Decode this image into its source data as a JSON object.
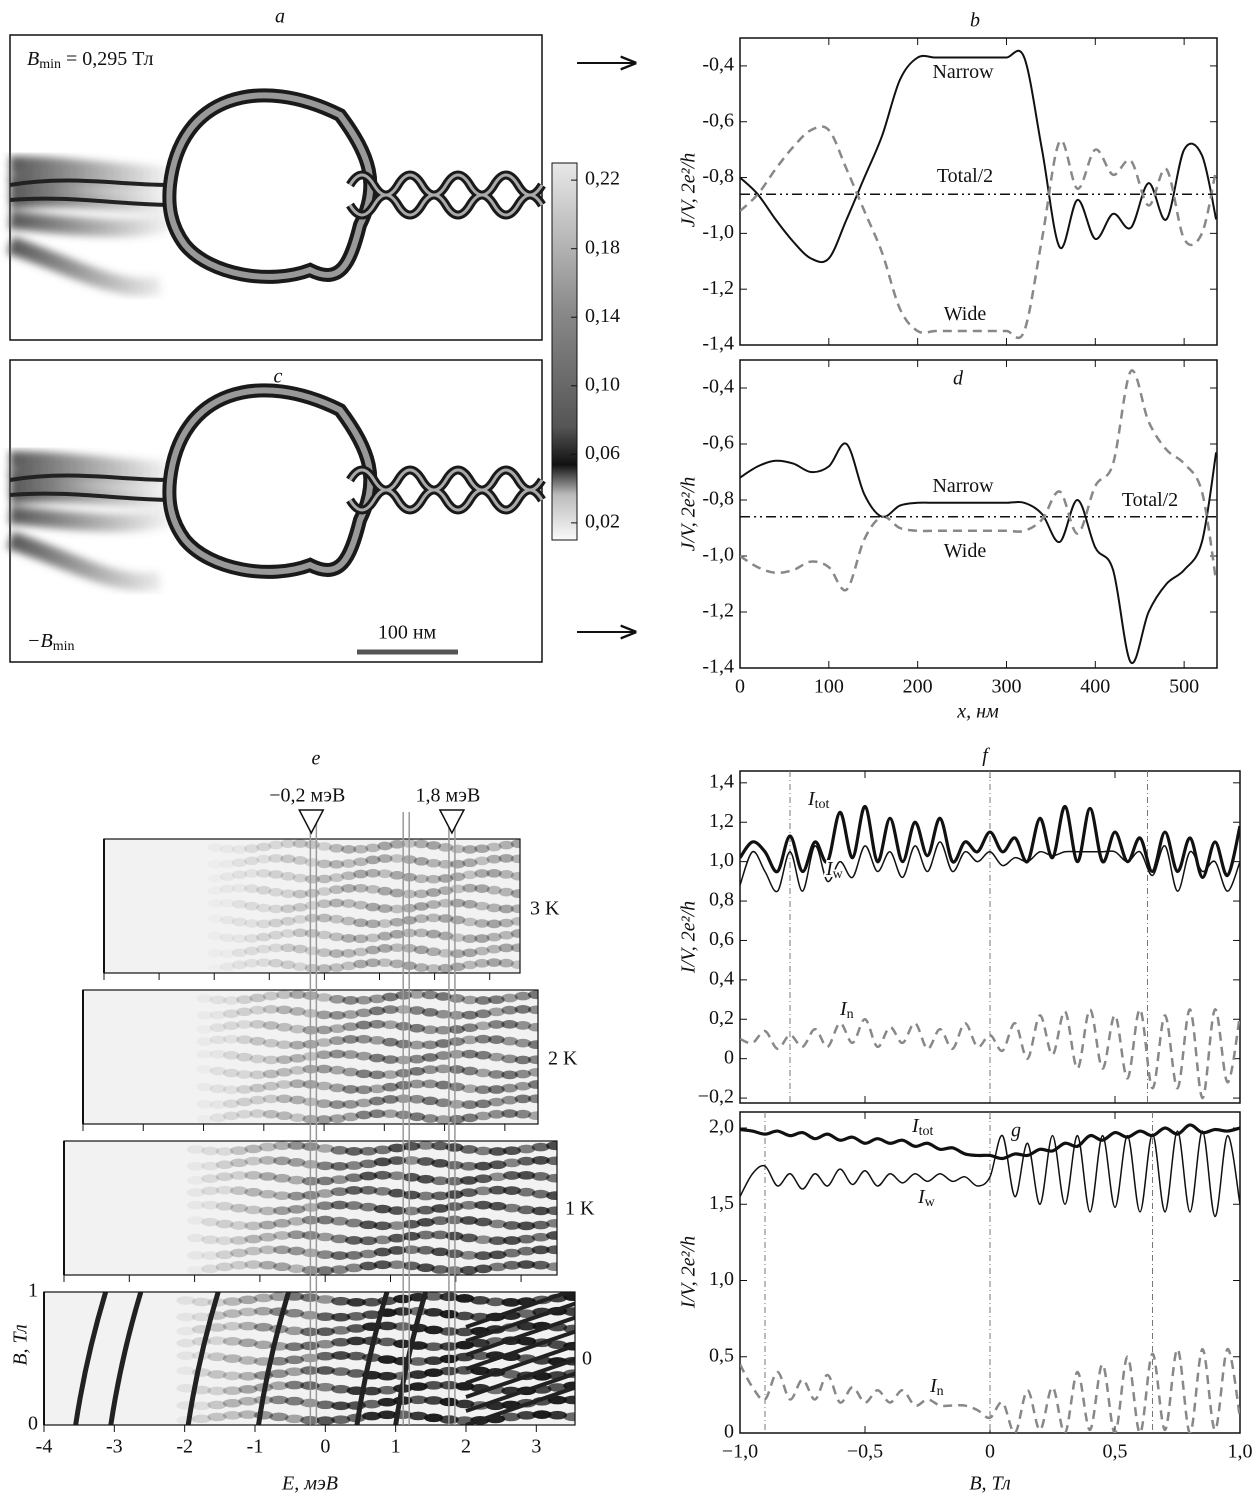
{
  "chart_data": [
    {
      "type": "map",
      "panel": "a",
      "annotation": [
        "B",
        "min",
        " = 0,295 Тл"
      ],
      "colorbar": {
        "clim": [
          0.01,
          0.23
        ],
        "ticks": [
          {
            "value": 0.02,
            "label": "0,02"
          },
          {
            "value": 0.06,
            "label": "0,06"
          },
          {
            "value": 0.1,
            "label": "0,10"
          },
          {
            "value": 0.14,
            "label": "0,14"
          },
          {
            "value": 0.18,
            "label": "0,18"
          },
          {
            "value": 0.22,
            "label": "0,22"
          }
        ]
      }
    },
    {
      "type": "map",
      "panel": "c",
      "annotation": [
        "−B",
        "min"
      ],
      "scalebar": "100 нм"
    },
    {
      "type": "line",
      "panel": "b",
      "ylabel": "J/V, 2e²/h",
      "xlim": [
        0,
        537
      ],
      "ylim": [
        -1.4,
        -0.3
      ],
      "xticks": [
        0,
        100,
        200,
        300,
        400,
        500
      ],
      "yticks": [
        {
          "value": -0.4,
          "label": "-0,4"
        },
        {
          "value": -0.6,
          "label": "-0,6"
        },
        {
          "value": -0.8,
          "label": "-0,8"
        },
        {
          "value": -1.0,
          "label": "-1,0"
        },
        {
          "value": -1.2,
          "label": "-1,2"
        },
        {
          "value": -1.4,
          "label": "-1,4"
        }
      ],
      "x": [
        0,
        20,
        40,
        60,
        80,
        100,
        120,
        140,
        160,
        180,
        200,
        220,
        240,
        260,
        280,
        300,
        320,
        340,
        360,
        380,
        400,
        420,
        440,
        460,
        480,
        500,
        520,
        536
      ],
      "series": [
        {
          "name": "Narrow",
          "color": "#111111",
          "dash": "solid",
          "line_width": 2,
          "values": [
            -0.8,
            -0.86,
            -0.95,
            -1.03,
            -1.09,
            -1.09,
            -0.95,
            -0.8,
            -0.65,
            -0.45,
            -0.37,
            -0.37,
            -0.37,
            -0.37,
            -0.37,
            -0.37,
            -0.37,
            -0.7,
            -1.05,
            -0.88,
            -1.02,
            -0.93,
            -0.98,
            -0.82,
            -0.95,
            -0.7,
            -0.72,
            -0.95
          ]
        },
        {
          "name": "Wide",
          "color": "#888888",
          "dash": "dashed",
          "line_width": 2.5,
          "values": [
            -0.92,
            -0.86,
            -0.77,
            -0.69,
            -0.63,
            -0.63,
            -0.77,
            -0.92,
            -1.07,
            -1.27,
            -1.35,
            -1.35,
            -1.35,
            -1.35,
            -1.35,
            -1.35,
            -1.35,
            -1.02,
            -0.67,
            -0.84,
            -0.7,
            -0.79,
            -0.74,
            -0.9,
            -0.77,
            -1.02,
            -1.0,
            -0.77
          ]
        },
        {
          "name": "Total/2",
          "color": "#111111",
          "dash": "dashdot",
          "line_width": 1.5,
          "values": [
            -0.86,
            -0.86,
            -0.86,
            -0.86,
            -0.86,
            -0.86,
            -0.86,
            -0.86,
            -0.86,
            -0.86,
            -0.86,
            -0.86,
            -0.86,
            -0.86,
            -0.86,
            -0.86,
            -0.86,
            -0.86,
            -0.86,
            -0.86,
            -0.86,
            -0.86,
            -0.86,
            -0.86,
            -0.86,
            -0.86,
            -0.86,
            -0.86
          ]
        }
      ]
    },
    {
      "type": "line",
      "panel": "d",
      "ylabel": "J/V, 2e²/h",
      "xlabel": "x, нм",
      "xlim": [
        0,
        537
      ],
      "ylim": [
        -1.4,
        -0.3
      ],
      "xticks": [
        0,
        100,
        200,
        300,
        400,
        500
      ],
      "yticks": [
        {
          "value": -0.4,
          "label": "-0,4"
        },
        {
          "value": -0.6,
          "label": "-0,6"
        },
        {
          "value": -0.8,
          "label": "-0,8"
        },
        {
          "value": -1.0,
          "label": "-1,0"
        },
        {
          "value": -1.2,
          "label": "-1,2"
        },
        {
          "value": -1.4,
          "label": "-1,4"
        }
      ],
      "x": [
        0,
        20,
        40,
        60,
        80,
        100,
        120,
        140,
        160,
        180,
        200,
        220,
        240,
        260,
        280,
        300,
        320,
        340,
        360,
        380,
        400,
        420,
        440,
        460,
        480,
        500,
        520,
        536
      ],
      "series": [
        {
          "name": "Narrow",
          "color": "#111111",
          "dash": "solid",
          "line_width": 2,
          "values": [
            -0.72,
            -0.68,
            -0.66,
            -0.67,
            -0.7,
            -0.68,
            -0.6,
            -0.78,
            -0.86,
            -0.82,
            -0.81,
            -0.81,
            -0.81,
            -0.81,
            -0.81,
            -0.81,
            -0.81,
            -0.85,
            -0.95,
            -0.8,
            -0.97,
            -1.05,
            -1.38,
            -1.2,
            -1.1,
            -1.05,
            -0.95,
            -0.63
          ]
        },
        {
          "name": "Wide",
          "color": "#888888",
          "dash": "dashed",
          "line_width": 2.5,
          "values": [
            -1.0,
            -1.04,
            -1.06,
            -1.05,
            -1.02,
            -1.04,
            -1.12,
            -0.94,
            -0.86,
            -0.9,
            -0.91,
            -0.91,
            -0.91,
            -0.91,
            -0.91,
            -0.91,
            -0.91,
            -0.87,
            -0.77,
            -0.92,
            -0.75,
            -0.67,
            -0.34,
            -0.52,
            -0.62,
            -0.67,
            -0.77,
            -1.09
          ]
        },
        {
          "name": "Total/2",
          "color": "#111111",
          "dash": "dashdot",
          "line_width": 1.5,
          "values": [
            -0.86,
            -0.86,
            -0.86,
            -0.86,
            -0.86,
            -0.86,
            -0.86,
            -0.86,
            -0.86,
            -0.86,
            -0.86,
            -0.86,
            -0.86,
            -0.86,
            -0.86,
            -0.86,
            -0.86,
            -0.86,
            -0.86,
            -0.86,
            -0.86,
            -0.86,
            -0.86,
            -0.86,
            -0.86,
            -0.86,
            -0.86,
            -0.86
          ]
        }
      ]
    },
    {
      "type": "heatmap",
      "panel": "e",
      "xlabel": "E, мэВ",
      "ylabel": "B, Тл",
      "xlim": [
        -4,
        3.55
      ],
      "ylim": [
        0,
        1
      ],
      "xticks": [
        -4,
        -3,
        -2,
        -1,
        0,
        1,
        2,
        3
      ],
      "yticks": [
        0,
        1
      ],
      "panels": [
        "3 K",
        "2 K",
        "1 K",
        "0"
      ],
      "markers": [
        {
          "value": -0.2,
          "label": "−0,2 мэВ"
        },
        {
          "value": 1.8,
          "label": "1,8 мэВ"
        }
      ],
      "vlines": [
        -0.17,
        1.15,
        1.8
      ]
    },
    {
      "type": "line",
      "panel": "f",
      "ylabel": "I/V, 2e²/h",
      "xlim": [
        -1,
        1
      ],
      "ylim": [
        -0.225,
        1.46
      ],
      "xticks": [
        -1,
        -0.5,
        0,
        0.5,
        1
      ],
      "yticks": [
        {
          "value": 1.4,
          "label": "1,4"
        },
        {
          "value": 1.2,
          "label": "1,2"
        },
        {
          "value": 1.0,
          "label": "1,0"
        },
        {
          "value": 0.8,
          "label": "0,8"
        },
        {
          "value": 0.6,
          "label": "0,6"
        },
        {
          "value": 0.4,
          "label": "0,4"
        },
        {
          "value": 0.2,
          "label": "0,2"
        },
        0,
        {
          "value": -0.2,
          "label": "−0,2"
        }
      ],
      "vlines": [
        -0.8,
        0,
        0.63
      ],
      "x": [
        -1,
        -0.95,
        -0.9,
        -0.85,
        -0.8,
        -0.75,
        -0.7,
        -0.65,
        -0.6,
        -0.55,
        -0.5,
        -0.45,
        -0.4,
        -0.35,
        -0.3,
        -0.25,
        -0.2,
        -0.15,
        -0.1,
        -0.05,
        0,
        0.05,
        0.1,
        0.15,
        0.2,
        0.25,
        0.3,
        0.35,
        0.4,
        0.45,
        0.5,
        0.55,
        0.6,
        0.65,
        0.7,
        0.75,
        0.8,
        0.85,
        0.9,
        0.95,
        1
      ],
      "series": [
        {
          "name": "I",
          "name_sub": "tot",
          "color": "#111111",
          "dash": "solid",
          "line_width": 3.2,
          "values": [
            1.02,
            1.1,
            1.05,
            0.95,
            1.13,
            0.95,
            1.1,
            1.0,
            1.25,
            1.02,
            1.28,
            1.0,
            1.22,
            1.0,
            1.2,
            1.03,
            1.22,
            1.0,
            1.1,
            1.05,
            1.15,
            1.05,
            1.12,
            1.0,
            1.22,
            1.02,
            1.28,
            1.0,
            1.27,
            1.0,
            1.15,
            1.0,
            1.12,
            0.95,
            1.15,
            0.95,
            1.12,
            0.92,
            1.1,
            0.93,
            1.18
          ]
        },
        {
          "name": "I",
          "name_sub": "w",
          "color": "#111111",
          "dash": "solid",
          "line_width": 1.5,
          "values": [
            0.88,
            1.05,
            0.95,
            0.85,
            1.05,
            0.85,
            1.08,
            0.9,
            1.0,
            0.92,
            1.08,
            0.95,
            1.05,
            0.92,
            1.08,
            0.95,
            1.1,
            0.95,
            1.05,
            1.0,
            1.05,
            0.98,
            1.02,
            1.0,
            1.05,
            1.03,
            1.05,
            1.05,
            1.05,
            1.05,
            1.05,
            1.0,
            1.05,
            0.93,
            1.08,
            0.85,
            1.05,
            0.95,
            1.0,
            0.85,
            1.0
          ]
        },
        {
          "name": "I",
          "name_sub": "n",
          "color": "#888888",
          "dash": "dashed",
          "line_width": 2.5,
          "values": [
            0.1,
            0.08,
            0.14,
            0.05,
            0.12,
            0.06,
            0.15,
            0.06,
            0.18,
            0.08,
            0.2,
            0.06,
            0.16,
            0.08,
            0.18,
            0.05,
            0.15,
            0.05,
            0.18,
            0.06,
            0.12,
            0.04,
            0.18,
            0.0,
            0.22,
            0.02,
            0.24,
            -0.05,
            0.25,
            -0.05,
            0.22,
            -0.1,
            0.25,
            -0.15,
            0.22,
            -0.15,
            0.25,
            -0.2,
            0.25,
            -0.12,
            0.22
          ]
        }
      ]
    },
    {
      "type": "line",
      "panel": "g",
      "ylabel": "I/V, 2e²/h",
      "xlabel": "B, Тл",
      "xlim": [
        -1,
        1
      ],
      "ylim": [
        0,
        2.105
      ],
      "xticks": [
        {
          "value": -1,
          "label": "−1,0"
        },
        {
          "value": -0.5,
          "label": "−0,5"
        },
        0,
        {
          "value": 0.5,
          "label": "0,5"
        },
        {
          "value": 1,
          "label": "1,0"
        }
      ],
      "yticks": [
        {
          "value": 2,
          "label": "2,0"
        },
        {
          "value": 1.5,
          "label": "1,5"
        },
        {
          "value": 1,
          "label": "1,0"
        },
        {
          "value": 0.5,
          "label": "0,5"
        },
        0
      ],
      "vlines": [
        -0.9,
        0,
        0.65
      ],
      "x": [
        -1,
        -0.95,
        -0.9,
        -0.85,
        -0.8,
        -0.75,
        -0.7,
        -0.65,
        -0.6,
        -0.55,
        -0.5,
        -0.45,
        -0.4,
        -0.35,
        -0.3,
        -0.25,
        -0.2,
        -0.15,
        -0.1,
        -0.05,
        0,
        0.05,
        0.1,
        0.15,
        0.2,
        0.25,
        0.3,
        0.35,
        0.4,
        0.45,
        0.5,
        0.55,
        0.6,
        0.65,
        0.7,
        0.75,
        0.8,
        0.85,
        0.9,
        0.95,
        1
      ],
      "series": [
        {
          "name": "I",
          "name_sub": "tot",
          "color": "#111111",
          "dash": "solid",
          "line_width": 3.2,
          "values": [
            1.99,
            1.98,
            1.96,
            1.98,
            1.95,
            1.97,
            1.93,
            1.96,
            1.92,
            1.94,
            1.9,
            1.93,
            1.9,
            1.92,
            1.88,
            1.9,
            1.86,
            1.87,
            1.83,
            1.82,
            1.82,
            1.8,
            1.83,
            1.82,
            1.86,
            1.85,
            1.9,
            1.88,
            1.95,
            1.92,
            1.97,
            1.94,
            1.98,
            1.95,
            2.0,
            1.96,
            2.02,
            1.97,
            1.99,
            1.98,
            2.0
          ]
        },
        {
          "name": "I",
          "name_sub": "w",
          "color": "#111111",
          "dash": "solid",
          "line_width": 1.5,
          "values": [
            1.55,
            1.7,
            1.75,
            1.62,
            1.7,
            1.6,
            1.7,
            1.62,
            1.73,
            1.63,
            1.72,
            1.62,
            1.7,
            1.64,
            1.7,
            1.65,
            1.7,
            1.65,
            1.68,
            1.62,
            1.68,
            1.95,
            1.55,
            1.9,
            1.5,
            1.95,
            1.5,
            1.95,
            1.45,
            1.95,
            1.48,
            1.95,
            1.45,
            1.96,
            1.45,
            1.98,
            1.45,
            1.98,
            1.42,
            1.95,
            1.5
          ]
        },
        {
          "name": "I",
          "name_sub": "n",
          "color": "#888888",
          "dash": "dashed",
          "line_width": 2.5,
          "values": [
            0.45,
            0.3,
            0.22,
            0.4,
            0.22,
            0.35,
            0.22,
            0.38,
            0.2,
            0.3,
            0.2,
            0.28,
            0.2,
            0.28,
            0.18,
            0.22,
            0.18,
            0.18,
            0.18,
            0.15,
            0.1,
            0.2,
            0.0,
            0.28,
            0.02,
            0.3,
            0.0,
            0.4,
            0.02,
            0.45,
            0.0,
            0.5,
            0.0,
            0.52,
            0.02,
            0.55,
            0.0,
            0.55,
            0.02,
            0.55,
            0.1
          ]
        }
      ]
    }
  ]
}
